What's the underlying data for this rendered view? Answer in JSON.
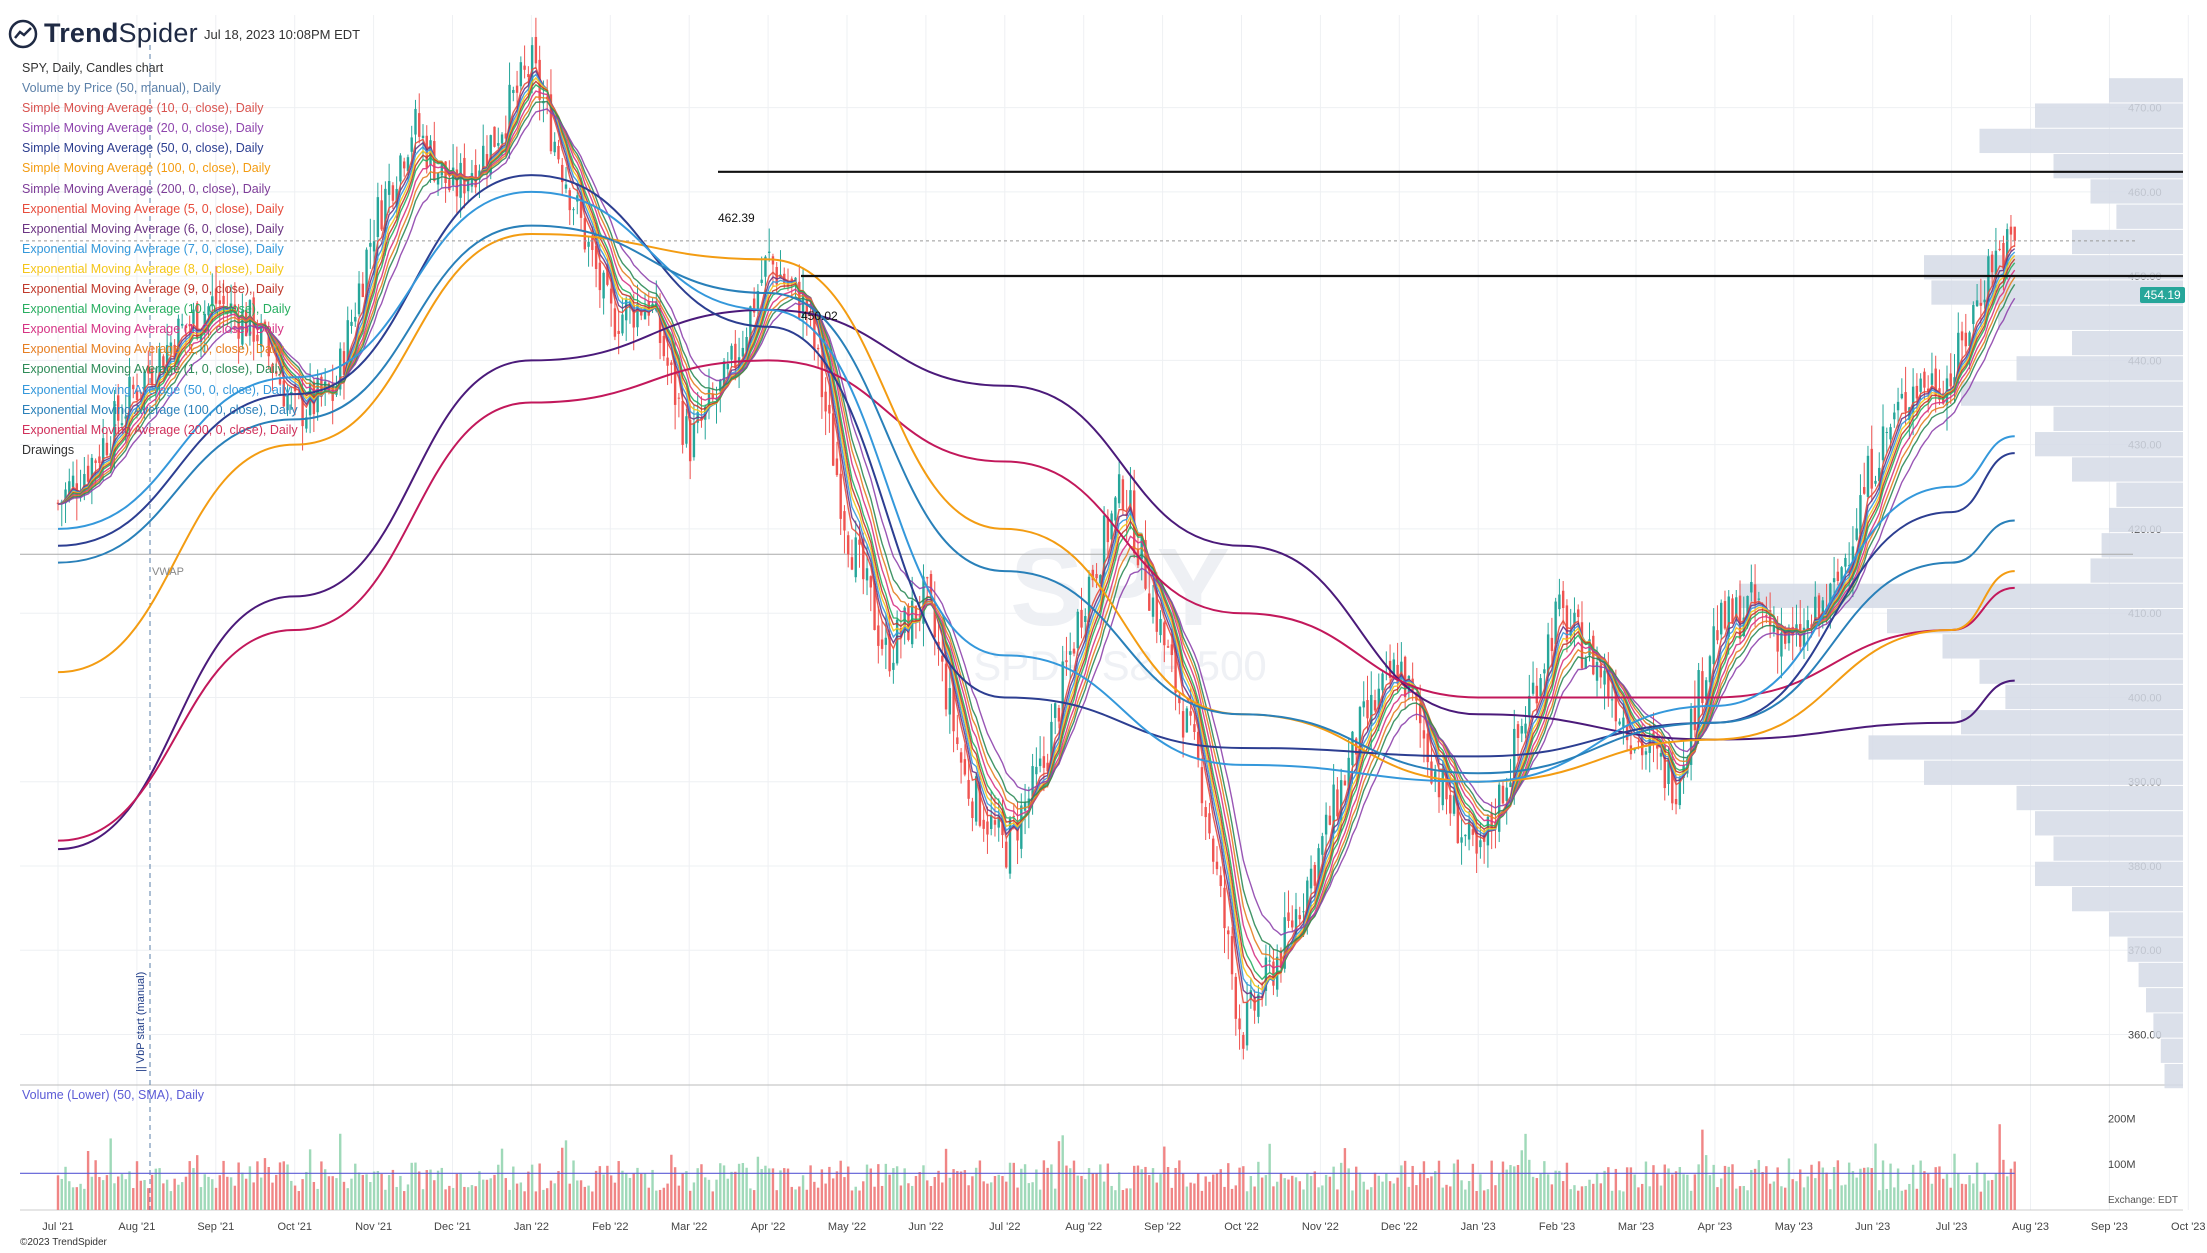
{
  "header": {
    "brand_trend": "Trend",
    "brand_spider": "Spider",
    "timestamp": "Jul 18, 2023 10:08PM EDT"
  },
  "legend": [
    {
      "text": "SPY, Daily, Candles chart",
      "color": "#333333"
    },
    {
      "text": "Volume by Price (50, manual), Daily",
      "color": "#5a7fa8"
    },
    {
      "text": "Simple Moving Average (10, 0, close), Daily",
      "color": "#d9534f"
    },
    {
      "text": "Simple Moving Average (20, 0, close), Daily",
      "color": "#8e44ad"
    },
    {
      "text": "Simple Moving Average (50, 0, close), Daily",
      "color": "#2c3e91"
    },
    {
      "text": "Simple Moving Average (100, 0, close), Daily",
      "color": "#f39c12"
    },
    {
      "text": "Simple Moving Average (200, 0, close), Daily",
      "color": "#7d3c98"
    },
    {
      "text": "Exponential Moving Average (5, 0, close), Daily",
      "color": "#e74c3c"
    },
    {
      "text": "Exponential Moving Average (6, 0, close), Daily",
      "color": "#6c3483"
    },
    {
      "text": "Exponential Moving Average (7, 0, close), Daily",
      "color": "#3498db"
    },
    {
      "text": "Exponential Moving Average (8, 0, close), Daily",
      "color": "#f5c518"
    },
    {
      "text": "Exponential Moving Average (9, 0, close), Daily",
      "color": "#c0392b"
    },
    {
      "text": "Exponential Moving Average (10, 0, close), Daily",
      "color": "#27ae60"
    },
    {
      "text": "Exponential Moving Average (1, 0, close), Daily",
      "color": "#d63384"
    },
    {
      "text": "Exponential Moving Average (1, 0, close), Daily",
      "color": "#e67e22"
    },
    {
      "text": "Exponential Moving Average (1, 0, close), Daily",
      "color": "#2e8b57"
    },
    {
      "text": "Exponential Moving Average (50, 0, close), Daily",
      "color": "#3498db"
    },
    {
      "text": "Exponential Moving Average (100, 0, close), Daily",
      "color": "#2980b9"
    },
    {
      "text": "Exponential Moving Average (200, 0, close), Daily",
      "color": "#d0305a"
    },
    {
      "text": "Drawings",
      "color": "#333333"
    }
  ],
  "volume_label": "Volume (Lower) (50, SMA), Daily",
  "copyright": "©2023 TrendSpider",
  "exchange": "Exchange: EDT",
  "annotations": {
    "vwap": "VWAP",
    "vp_start": "|| VbP start (manual)",
    "level_high": "462.39",
    "level_mid": "450.02",
    "last_price": "454.19"
  },
  "watermark": {
    "symbol": "SPY",
    "name": "SPDR S&P 500"
  },
  "colors": {
    "up": "#26a69a",
    "down": "#ef5350",
    "up_vol": "#9fd9b9",
    "down_vol": "#f08585",
    "vbp": "#d5dbe6",
    "price_tag": "#26a69a"
  },
  "chart_data": {
    "type": "candlestick",
    "symbol": "SPY",
    "timeframe": "Daily",
    "ylim": [
      354,
      481
    ],
    "y_ticks": [
      "360.00",
      "370.00",
      "380.00",
      "390.00",
      "400.00",
      "410.00",
      "420.00",
      "430.00",
      "440.00",
      "450.00",
      "460.00",
      "470.00"
    ],
    "x_ticks": [
      "Jul '21",
      "Aug '21",
      "Sep '21",
      "Oct '21",
      "Nov '21",
      "Dec '21",
      "Jan '22",
      "Feb '22",
      "Mar '22",
      "Apr '22",
      "May '22",
      "Jun '22",
      "Jul '22",
      "Aug '22",
      "Sep '22",
      "Oct '22",
      "Nov '22",
      "Dec '22",
      "Jan '23",
      "Feb '23",
      "Mar '23",
      "Apr '23",
      "May '23",
      "Jun '23",
      "Jul '23",
      "Aug '23",
      "Sep '23",
      "Oct '23"
    ],
    "x_tick_months": [
      0,
      1,
      2,
      3,
      4,
      5,
      6,
      7,
      8,
      9,
      10,
      11,
      12,
      13,
      14,
      15,
      16,
      17,
      18,
      19,
      20,
      21,
      22,
      23,
      24,
      25,
      26,
      27
    ],
    "close_path_month_vs_price": [
      [
        0,
        423
      ],
      [
        0.5,
        429
      ],
      [
        1,
        437
      ],
      [
        1.5,
        443
      ],
      [
        2,
        447
      ],
      [
        2.5,
        444
      ],
      [
        3,
        434
      ],
      [
        3.5,
        436
      ],
      [
        4,
        456
      ],
      [
        4.5,
        468
      ],
      [
        5,
        460
      ],
      [
        5.5,
        466
      ],
      [
        6,
        475
      ],
      [
        6.5,
        460
      ],
      [
        7,
        445
      ],
      [
        7.5,
        447
      ],
      [
        8,
        430
      ],
      [
        8.5,
        438
      ],
      [
        9,
        452
      ],
      [
        9.5,
        446
      ],
      [
        10,
        420
      ],
      [
        10.5,
        405
      ],
      [
        11,
        412
      ],
      [
        11.5,
        390
      ],
      [
        12,
        382
      ],
      [
        12.5,
        392
      ],
      [
        13,
        412
      ],
      [
        13.5,
        425
      ],
      [
        14,
        407
      ],
      [
        14.5,
        390
      ],
      [
        15,
        360
      ],
      [
        15.5,
        370
      ],
      [
        16,
        382
      ],
      [
        16.5,
        396
      ],
      [
        17,
        404
      ],
      [
        17.5,
        390
      ],
      [
        18,
        380
      ],
      [
        18.5,
        395
      ],
      [
        19,
        410
      ],
      [
        19.5,
        404
      ],
      [
        20,
        395
      ],
      [
        20.5,
        390
      ],
      [
        21,
        408
      ],
      [
        21.5,
        411
      ],
      [
        22,
        406
      ],
      [
        22.5,
        412
      ],
      [
        23,
        428
      ],
      [
        23.5,
        437
      ],
      [
        24,
        438
      ],
      [
        24.5,
        452
      ],
      [
        24.8,
        454.19
      ]
    ],
    "horizontal_levels": [
      462.39,
      450.02
    ],
    "vwap_level": 417,
    "last_price": 454.19,
    "moving_averages": [
      {
        "name": "SMA 200",
        "color": "#4b1a7a",
        "points": [
          [
            0,
            382
          ],
          [
            3,
            412
          ],
          [
            6,
            440
          ],
          [
            9,
            446
          ],
          [
            12,
            437
          ],
          [
            15,
            418
          ],
          [
            18,
            398
          ],
          [
            21,
            395
          ],
          [
            24,
            397
          ],
          [
            24.8,
            402
          ]
        ]
      },
      {
        "name": "EMA 200",
        "color": "#c2185b",
        "points": [
          [
            0,
            383
          ],
          [
            3,
            408
          ],
          [
            6,
            435
          ],
          [
            9,
            440
          ],
          [
            12,
            428
          ],
          [
            15,
            410
          ],
          [
            18,
            400
          ],
          [
            21,
            400
          ],
          [
            24,
            408
          ],
          [
            24.8,
            413
          ]
        ]
      },
      {
        "name": "SMA 100",
        "color": "#f39c12",
        "points": [
          [
            0,
            403
          ],
          [
            3,
            430
          ],
          [
            6,
            455
          ],
          [
            9,
            452
          ],
          [
            12,
            420
          ],
          [
            15,
            398
          ],
          [
            18,
            390
          ],
          [
            21,
            395
          ],
          [
            24,
            408
          ],
          [
            24.8,
            415
          ]
        ]
      },
      {
        "name": "SMA 50",
        "color": "#2c3e91",
        "points": [
          [
            0,
            418
          ],
          [
            3,
            436
          ],
          [
            6,
            462
          ],
          [
            9,
            444
          ],
          [
            12,
            400
          ],
          [
            15,
            394
          ],
          [
            18,
            393
          ],
          [
            21,
            397
          ],
          [
            24,
            422
          ],
          [
            24.8,
            429
          ]
        ]
      },
      {
        "name": "EMA 50",
        "color": "#3498db",
        "points": [
          [
            0,
            420
          ],
          [
            3,
            438
          ],
          [
            6,
            460
          ],
          [
            9,
            446
          ],
          [
            12,
            405
          ],
          [
            15,
            392
          ],
          [
            18,
            390
          ],
          [
            21,
            399
          ],
          [
            24,
            425
          ],
          [
            24.8,
            431
          ]
        ]
      },
      {
        "name": "EMA 100",
        "color": "#2980b9",
        "points": [
          [
            0,
            416
          ],
          [
            3,
            433
          ],
          [
            6,
            456
          ],
          [
            9,
            448
          ],
          [
            12,
            415
          ],
          [
            15,
            398
          ],
          [
            18,
            391
          ],
          [
            21,
            397
          ],
          [
            24,
            416
          ],
          [
            24.8,
            421
          ]
        ]
      }
    ],
    "volume": {
      "y_ticks": [
        "200M",
        "100M"
      ],
      "ylim": [
        0,
        240
      ],
      "sma_level": 80
    },
    "volume_by_price": [
      [
        472,
        20
      ],
      [
        469,
        40
      ],
      [
        466,
        55
      ],
      [
        463,
        35
      ],
      [
        460,
        25
      ],
      [
        457,
        18
      ],
      [
        454,
        30
      ],
      [
        451,
        70
      ],
      [
        448,
        68
      ],
      [
        445,
        50
      ],
      [
        442,
        30
      ],
      [
        439,
        45
      ],
      [
        436,
        60
      ],
      [
        433,
        35
      ],
      [
        430,
        40
      ],
      [
        427,
        30
      ],
      [
        424,
        18
      ],
      [
        421,
        20
      ],
      [
        418,
        22
      ],
      [
        415,
        25
      ],
      [
        412,
        120
      ],
      [
        409,
        80
      ],
      [
        406,
        65
      ],
      [
        403,
        55
      ],
      [
        400,
        48
      ],
      [
        397,
        60
      ],
      [
        394,
        85
      ],
      [
        391,
        70
      ],
      [
        388,
        45
      ],
      [
        385,
        40
      ],
      [
        382,
        35
      ],
      [
        379,
        40
      ],
      [
        376,
        30
      ],
      [
        373,
        20
      ],
      [
        370,
        15
      ],
      [
        367,
        12
      ],
      [
        364,
        10
      ],
      [
        361,
        8
      ],
      [
        358,
        6
      ],
      [
        355,
        5
      ]
    ]
  }
}
